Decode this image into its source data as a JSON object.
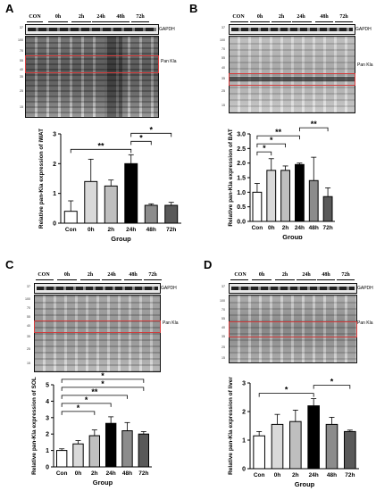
{
  "panels": [
    {
      "label": "A",
      "lanes": [
        "CON",
        "0h",
        "2h",
        "24h",
        "48h",
        "72h"
      ],
      "gapdh": "GAPDH",
      "band": "Pan Kla",
      "mw": [
        "37",
        "100",
        "70",
        "55",
        "40",
        "35",
        "25",
        "15"
      ],
      "dark_lanes": [
        0.55,
        0.6,
        0.65,
        0.9,
        0.5,
        0.45
      ]
    },
    {
      "label": "B",
      "lanes": [
        "CON",
        "0h",
        "2h",
        "24h",
        "48h",
        "72h"
      ],
      "gapdh": "GAPDH",
      "band": "Pan Kla",
      "mw": [
        "37",
        "100",
        "70",
        "55",
        "40",
        "35",
        "25",
        "15"
      ],
      "dark_lanes": [
        0.5,
        0.55,
        0.55,
        0.6,
        0.7,
        0.6
      ]
    },
    {
      "label": "C",
      "lanes": [
        "CON",
        "0h",
        "2h",
        "24h",
        "48h",
        "72h"
      ],
      "gapdh": "GAPDH",
      "band": "Pan Kla",
      "mw": [
        "37",
        "100",
        "70",
        "55",
        "40",
        "35",
        "25",
        "15"
      ],
      "dark_lanes": [
        0.55,
        0.6,
        0.6,
        0.75,
        0.65,
        0.6
      ]
    },
    {
      "label": "D",
      "lanes": [
        "CON",
        "0h",
        "2h",
        "24h",
        "48h",
        "72h"
      ],
      "gapdh": "GAPDH",
      "band": "Pan Kla",
      "mw": [
        "37",
        "100",
        "70",
        "55",
        "40",
        "35",
        "25",
        "15"
      ],
      "dark_lanes": [
        0.5,
        0.55,
        0.6,
        0.75,
        0.6,
        0.55
      ]
    }
  ],
  "chart_data": [
    {
      "type": "bar",
      "panel": "A",
      "categories": [
        "Con",
        "0h",
        "2h",
        "24h",
        "48h",
        "72h"
      ],
      "values": [
        0.4,
        1.4,
        1.25,
        2.0,
        0.6,
        0.6
      ],
      "errors": [
        0.35,
        0.75,
        0.2,
        0.3,
        0.05,
        0.1
      ],
      "xlabel": "Group",
      "ylabel": "Relative pan-Kla expression of iWAT",
      "ylim": [
        0,
        3
      ],
      "yticks": [
        "0",
        "1",
        "2",
        "3"
      ],
      "sig": [
        {
          "from": 0,
          "to": 3,
          "label": "**"
        },
        {
          "from": 3,
          "to": 4,
          "label": "*"
        },
        {
          "from": 3,
          "to": 5,
          "label": "*"
        }
      ]
    },
    {
      "type": "bar",
      "panel": "B",
      "categories": [
        "Con",
        "0h",
        "2h",
        "24h",
        "48h",
        "72h"
      ],
      "values": [
        1.0,
        1.75,
        1.75,
        1.95,
        1.4,
        0.85
      ],
      "errors": [
        0.3,
        0.4,
        0.15,
        0.05,
        0.8,
        0.3
      ],
      "xlabel": "Group",
      "ylabel": "Relative pan-Kla expression of BAT",
      "ylim": [
        0,
        3
      ],
      "yticks": [
        "0.0",
        "0.5",
        "1.0",
        "1.5",
        "2.0",
        "2.5",
        "3.0"
      ],
      "sig": [
        {
          "from": 0,
          "to": 1,
          "label": "*"
        },
        {
          "from": 0,
          "to": 2,
          "label": "*"
        },
        {
          "from": 0,
          "to": 3,
          "label": "**"
        },
        {
          "from": 3,
          "to": 5,
          "label": "**"
        }
      ]
    },
    {
      "type": "bar",
      "panel": "C",
      "categories": [
        "Con",
        "0h",
        "2h",
        "24h",
        "48h",
        "72h"
      ],
      "values": [
        1.0,
        1.4,
        1.9,
        2.65,
        2.2,
        2.0
      ],
      "errors": [
        0.1,
        0.2,
        0.35,
        0.4,
        0.5,
        0.15
      ],
      "xlabel": "Group",
      "ylabel": "Relative pan-Kla expression of SOL",
      "ylim": [
        0,
        5
      ],
      "yticks": [
        "0",
        "1",
        "2",
        "3",
        "4",
        "5"
      ],
      "sig": [
        {
          "from": 0,
          "to": 2,
          "label": "*"
        },
        {
          "from": 0,
          "to": 3,
          "label": "*"
        },
        {
          "from": 0,
          "to": 4,
          "label": "**"
        },
        {
          "from": 0,
          "to": 5,
          "label": "*"
        },
        {
          "from": 0,
          "to": 5,
          "label": "*"
        }
      ]
    },
    {
      "type": "bar",
      "panel": "D",
      "categories": [
        "Con",
        "0h",
        "2h",
        "24h",
        "48h",
        "72h"
      ],
      "values": [
        1.15,
        1.55,
        1.65,
        2.2,
        1.55,
        1.3
      ],
      "errors": [
        0.15,
        0.35,
        0.4,
        0.25,
        0.25,
        0.05
      ],
      "xlabel": "Group",
      "ylabel": "Relative pan-Kla expression of liver",
      "ylim": [
        0,
        3
      ],
      "yticks": [
        "0",
        "1",
        "2",
        "3"
      ],
      "sig": [
        {
          "from": 0,
          "to": 3,
          "label": "*"
        },
        {
          "from": 3,
          "to": 5,
          "label": "*"
        }
      ]
    }
  ],
  "colors": {
    "bars": [
      "#ffffff",
      "#d9d9d9",
      "#bfbfbf",
      "#000000",
      "#8c8c8c",
      "#595959"
    ],
    "highlight": "#d23a3a"
  }
}
